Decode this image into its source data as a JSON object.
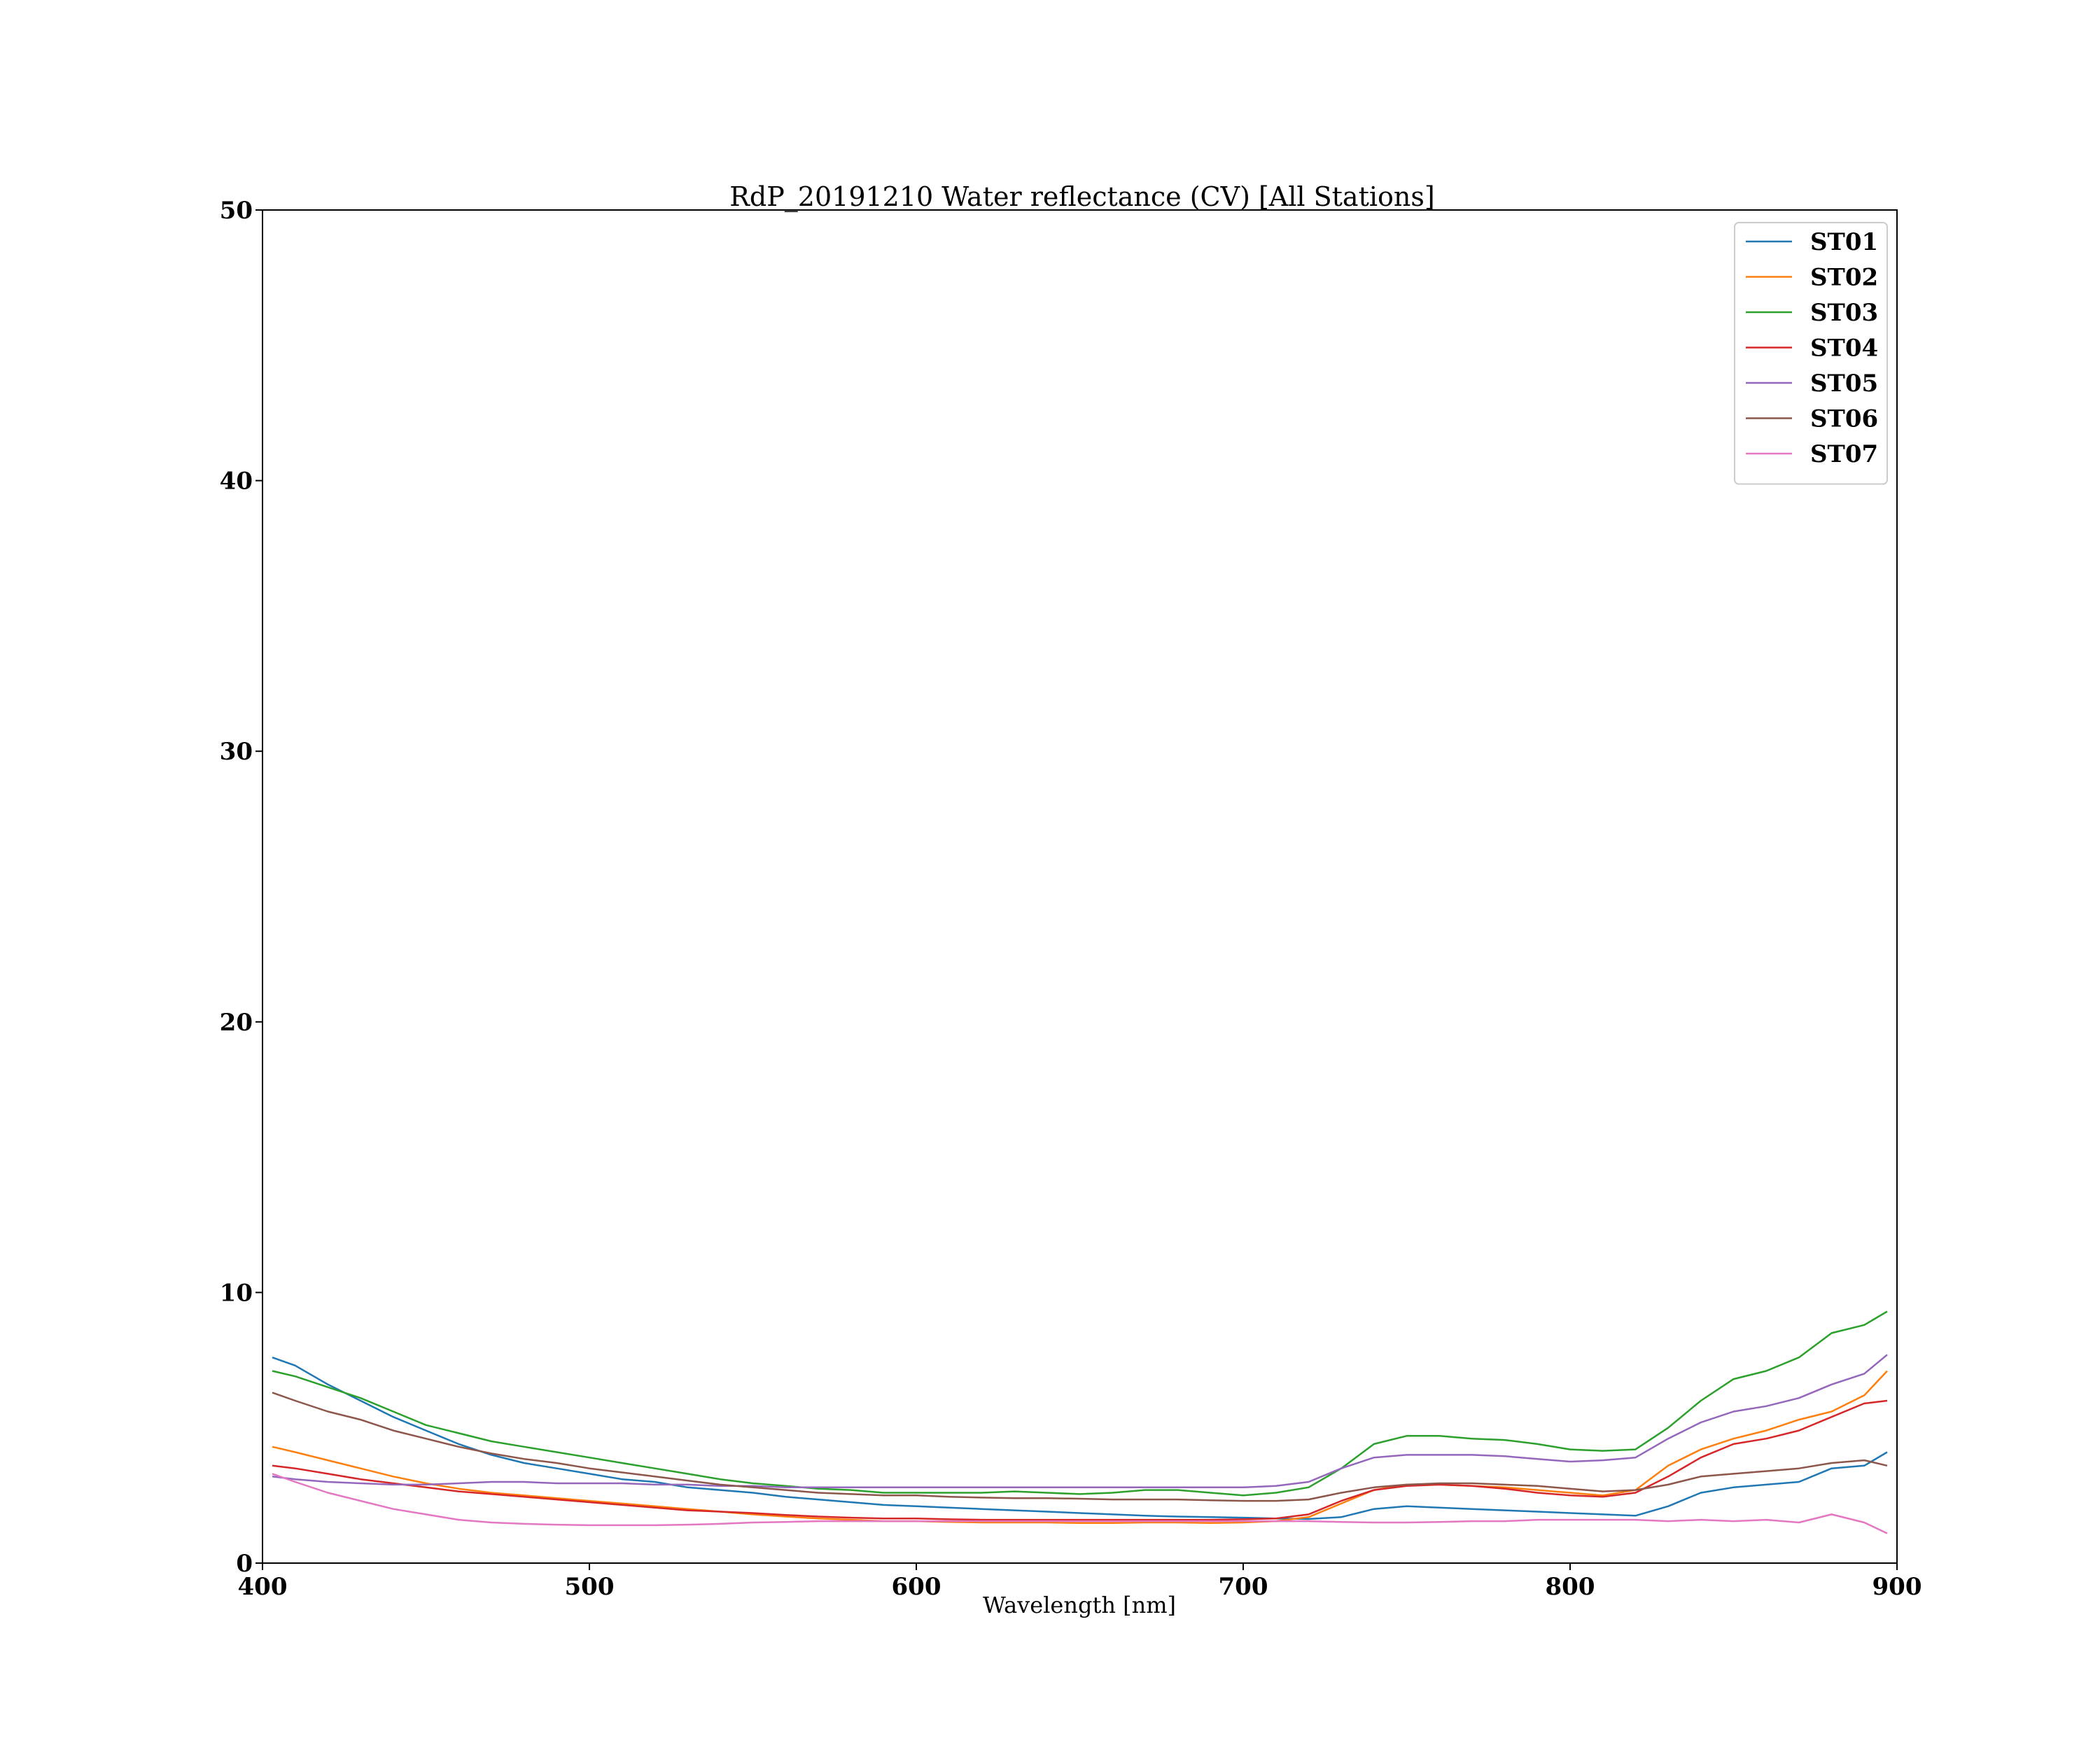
{
  "chart_data": {
    "type": "line",
    "title": "RdP_20191210 Water reflectance (CV) [All Stations]",
    "xlabel": "Wavelength [nm]",
    "ylabel": "",
    "xlim": [
      400,
      900
    ],
    "ylim": [
      0,
      50
    ],
    "xticks": [
      400,
      500,
      600,
      700,
      800,
      900
    ],
    "yticks": [
      0,
      10,
      20,
      30,
      40,
      50
    ],
    "grid": false,
    "legend_position": "top-right",
    "x": [
      403,
      410,
      420,
      430,
      440,
      450,
      460,
      470,
      480,
      490,
      500,
      510,
      520,
      530,
      540,
      550,
      560,
      570,
      580,
      590,
      600,
      610,
      620,
      630,
      640,
      650,
      660,
      670,
      680,
      690,
      700,
      710,
      720,
      730,
      740,
      750,
      760,
      770,
      780,
      790,
      800,
      810,
      820,
      830,
      840,
      850,
      860,
      870,
      880,
      890,
      897
    ],
    "series": [
      {
        "name": "ST01",
        "color": "#1f77b4",
        "values": [
          7.6,
          7.3,
          6.6,
          6.0,
          5.4,
          4.9,
          4.4,
          4.0,
          3.7,
          3.5,
          3.3,
          3.1,
          3.0,
          2.8,
          2.7,
          2.6,
          2.45,
          2.35,
          2.25,
          2.15,
          2.1,
          2.05,
          2.0,
          1.95,
          1.9,
          1.85,
          1.8,
          1.75,
          1.72,
          1.7,
          1.68,
          1.65,
          1.63,
          1.7,
          2.0,
          2.1,
          2.05,
          2.0,
          1.95,
          1.9,
          1.85,
          1.8,
          1.75,
          2.1,
          2.6,
          2.8,
          2.9,
          3.0,
          3.5,
          3.6,
          4.1
        ]
      },
      {
        "name": "ST02",
        "color": "#ff7f0e",
        "values": [
          4.3,
          4.1,
          3.8,
          3.5,
          3.2,
          2.95,
          2.75,
          2.6,
          2.5,
          2.4,
          2.3,
          2.2,
          2.1,
          2.0,
          1.9,
          1.8,
          1.72,
          1.65,
          1.6,
          1.55,
          1.55,
          1.52,
          1.5,
          1.5,
          1.5,
          1.48,
          1.48,
          1.5,
          1.5,
          1.48,
          1.5,
          1.55,
          1.7,
          2.2,
          2.7,
          2.9,
          2.9,
          2.85,
          2.8,
          2.7,
          2.6,
          2.5,
          2.7,
          3.6,
          4.2,
          4.6,
          4.9,
          5.3,
          5.6,
          6.2,
          7.1
        ]
      },
      {
        "name": "ST03",
        "color": "#2ca02c",
        "values": [
          7.1,
          6.9,
          6.5,
          6.1,
          5.6,
          5.1,
          4.8,
          4.5,
          4.3,
          4.1,
          3.9,
          3.7,
          3.5,
          3.3,
          3.1,
          2.95,
          2.85,
          2.75,
          2.7,
          2.6,
          2.6,
          2.6,
          2.6,
          2.65,
          2.6,
          2.55,
          2.6,
          2.7,
          2.7,
          2.6,
          2.5,
          2.6,
          2.8,
          3.5,
          4.4,
          4.7,
          4.7,
          4.6,
          4.55,
          4.4,
          4.2,
          4.15,
          4.2,
          5.0,
          6.0,
          6.8,
          7.1,
          7.6,
          8.5,
          8.8,
          9.3
        ]
      },
      {
        "name": "ST04",
        "color": "#d62728",
        "values": [
          3.6,
          3.5,
          3.3,
          3.1,
          2.95,
          2.8,
          2.65,
          2.55,
          2.45,
          2.35,
          2.25,
          2.15,
          2.05,
          1.95,
          1.9,
          1.85,
          1.78,
          1.72,
          1.68,
          1.65,
          1.65,
          1.62,
          1.6,
          1.6,
          1.6,
          1.6,
          1.6,
          1.6,
          1.6,
          1.6,
          1.62,
          1.65,
          1.8,
          2.3,
          2.7,
          2.85,
          2.9,
          2.85,
          2.75,
          2.6,
          2.5,
          2.45,
          2.6,
          3.2,
          3.9,
          4.4,
          4.6,
          4.9,
          5.4,
          5.9,
          6.0
        ]
      },
      {
        "name": "ST05",
        "color": "#9467bd",
        "values": [
          3.2,
          3.1,
          3.0,
          2.95,
          2.9,
          2.9,
          2.95,
          3.0,
          3.0,
          2.95,
          2.95,
          2.95,
          2.9,
          2.9,
          2.85,
          2.85,
          2.8,
          2.8,
          2.8,
          2.8,
          2.8,
          2.8,
          2.8,
          2.8,
          2.8,
          2.8,
          2.8,
          2.8,
          2.8,
          2.8,
          2.8,
          2.85,
          3.0,
          3.5,
          3.9,
          4.0,
          4.0,
          4.0,
          3.95,
          3.85,
          3.75,
          3.8,
          3.9,
          4.6,
          5.2,
          5.6,
          5.8,
          6.1,
          6.6,
          7.0,
          7.7
        ]
      },
      {
        "name": "ST06",
        "color": "#8c564b",
        "values": [
          6.3,
          6.0,
          5.6,
          5.3,
          4.9,
          4.6,
          4.3,
          4.05,
          3.85,
          3.7,
          3.5,
          3.35,
          3.2,
          3.05,
          2.9,
          2.8,
          2.7,
          2.6,
          2.55,
          2.5,
          2.5,
          2.45,
          2.42,
          2.4,
          2.4,
          2.38,
          2.35,
          2.35,
          2.35,
          2.32,
          2.3,
          2.3,
          2.35,
          2.6,
          2.8,
          2.9,
          2.95,
          2.95,
          2.9,
          2.85,
          2.75,
          2.65,
          2.7,
          2.9,
          3.2,
          3.3,
          3.4,
          3.5,
          3.7,
          3.8,
          3.6
        ]
      },
      {
        "name": "ST07",
        "color": "#e377c2",
        "values": [
          3.3,
          3.0,
          2.6,
          2.3,
          2.0,
          1.8,
          1.6,
          1.5,
          1.45,
          1.42,
          1.4,
          1.4,
          1.4,
          1.42,
          1.45,
          1.5,
          1.52,
          1.55,
          1.55,
          1.55,
          1.55,
          1.55,
          1.55,
          1.55,
          1.55,
          1.55,
          1.55,
          1.55,
          1.55,
          1.55,
          1.55,
          1.55,
          1.55,
          1.52,
          1.5,
          1.5,
          1.52,
          1.55,
          1.55,
          1.6,
          1.6,
          1.6,
          1.6,
          1.55,
          1.6,
          1.55,
          1.6,
          1.5,
          1.8,
          1.5,
          1.1
        ]
      }
    ]
  }
}
